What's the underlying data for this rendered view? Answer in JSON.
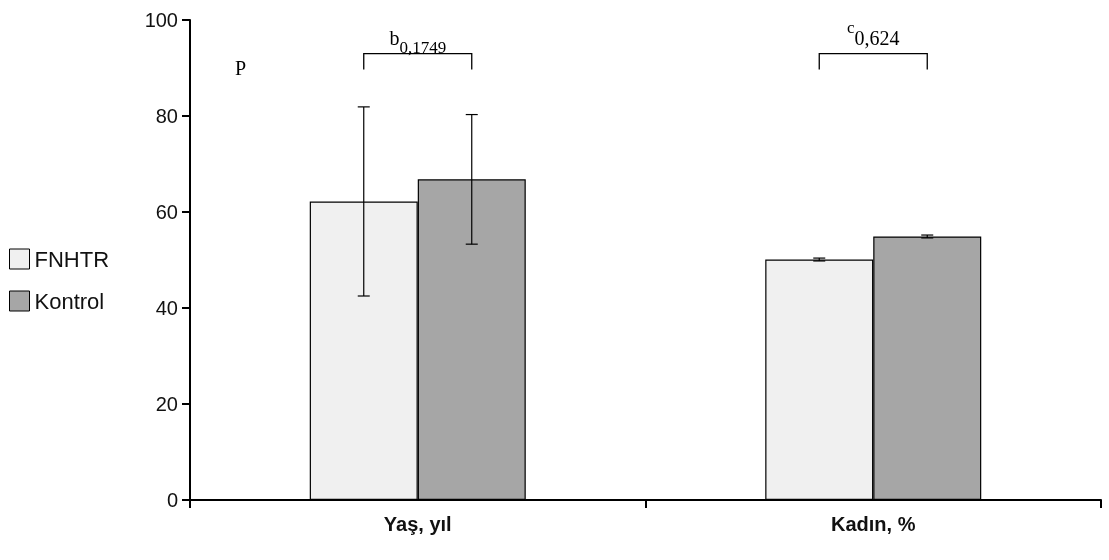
{
  "chart_data": {
    "type": "bar",
    "categories": [
      "Yaş, yıl",
      "Kadın, %"
    ],
    "series": [
      {
        "name": "FNHTR",
        "color": "#f0f0f0",
        "values": [
          62.2,
          50.1
        ],
        "errors": [
          19.7,
          0.3
        ]
      },
      {
        "name": "Kontrol",
        "color": "#a6a6a6",
        "values": [
          66.8,
          54.9
        ],
        "errors": [
          13.5,
          0.3
        ]
      }
    ],
    "ylim": [
      0,
      100
    ],
    "yticks": [
      0,
      20,
      40,
      60,
      80,
      100
    ],
    "grid": false,
    "legend": "left",
    "annotations": [
      "P",
      "b$_{0,1749}$",
      "$^{c}$0,624"
    ]
  }
}
